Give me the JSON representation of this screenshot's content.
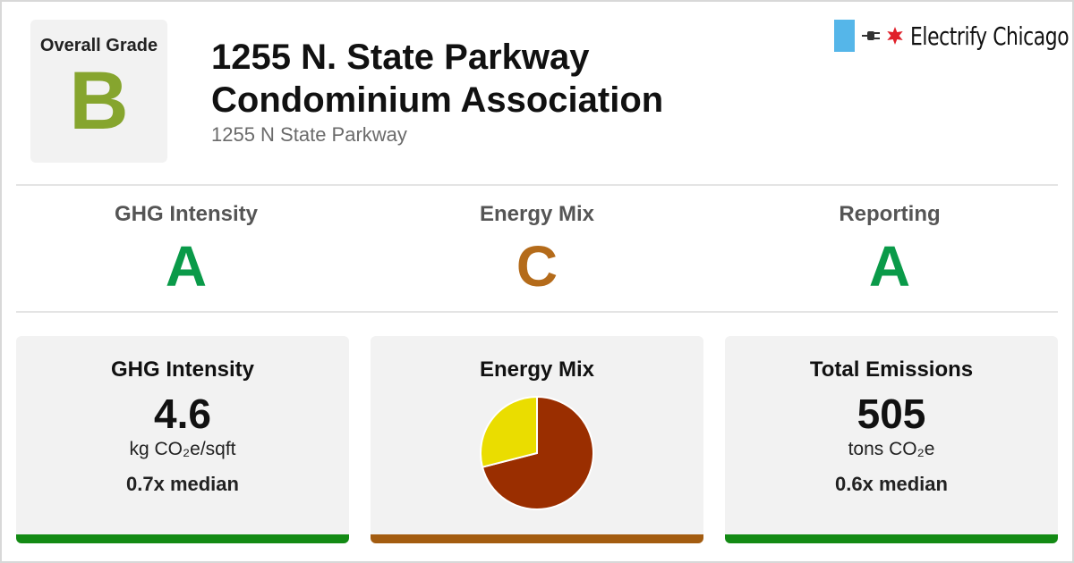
{
  "header": {
    "overall_grade_label": "Overall Grade",
    "overall_grade": "B",
    "overall_grade_color": "#86a52e",
    "title_line1": "1255 N. State Parkway",
    "title_line2": "Condominium Association",
    "address": "1255 N State Parkway",
    "brand": "Electrify Chicago",
    "brand_icons": [
      "flag-bar-icon",
      "plug-icon",
      "chicago-star-icon"
    ]
  },
  "subgrades": [
    {
      "name": "GHG Intensity",
      "grade": "A",
      "color": "#0a9a49"
    },
    {
      "name": "Energy Mix",
      "grade": "C",
      "color": "#b46b1a"
    },
    {
      "name": "Reporting",
      "grade": "A",
      "color": "#0a9a49"
    }
  ],
  "cards": {
    "ghg": {
      "title": "GHG Intensity",
      "value": "4.6",
      "unit": "kg CO₂e/sqft",
      "median": "0.7x median",
      "bar_color": "#138a14"
    },
    "mix": {
      "title": "Energy Mix",
      "bar_color": "#a35c10"
    },
    "emissions": {
      "title": "Total Emissions",
      "value": "505",
      "unit": "tons CO₂e",
      "median": "0.6x median",
      "bar_color": "#138a14"
    }
  },
  "chart_data": {
    "type": "pie",
    "slices": [
      {
        "value": 71,
        "color": "#9a2e00"
      },
      {
        "value": 29,
        "color": "#eadd00"
      }
    ]
  }
}
